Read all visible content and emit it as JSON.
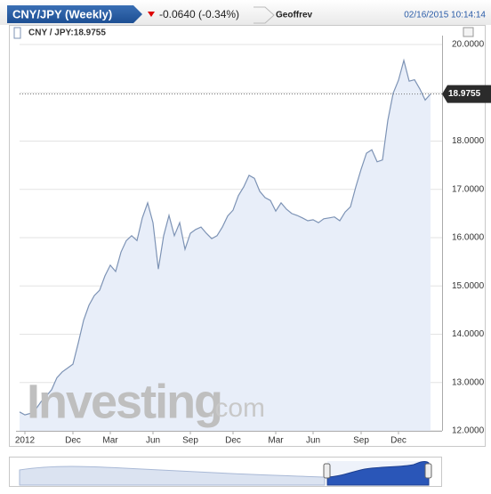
{
  "chart_data": {
    "type": "line",
    "title": "CNY/JPY (Weekly)",
    "change": "-0.0640 (-0.34%)",
    "user": "Geoffrev",
    "timestamp": "02/16/2015 10:14:14",
    "legend_label": "CNY / JPY:18.9755",
    "watermark": "Investing",
    "watermark_suffix": ".com",
    "color": "#7d93b5",
    "fill_color": "#e8eef9",
    "grid": true,
    "ylim": [
      12,
      20
    ],
    "yticks": [
      {
        "value": 12,
        "label": "12.0000"
      },
      {
        "value": 13,
        "label": "13.0000"
      },
      {
        "value": 14,
        "label": "14.0000"
      },
      {
        "value": 15,
        "label": "15.0000"
      },
      {
        "value": 16,
        "label": "16.0000"
      },
      {
        "value": 17,
        "label": "17.0000"
      },
      {
        "value": 18,
        "label": "18.0000"
      },
      {
        "value": 19,
        "label": "19.0000"
      },
      {
        "value": 20,
        "label": "20.0000"
      }
    ],
    "current_price": {
      "value": 18.9755,
      "label": "18.9755"
    },
    "categories": [
      null,
      "2012",
      null,
      null,
      null,
      null,
      null,
      null,
      null,
      null,
      "Dec",
      null,
      null,
      null,
      null,
      null,
      null,
      "Mar",
      null,
      null,
      null,
      null,
      null,
      null,
      null,
      "Jun",
      null,
      null,
      null,
      null,
      null,
      null,
      "Sep",
      null,
      null,
      null,
      null,
      null,
      null,
      null,
      "Dec",
      null,
      null,
      null,
      null,
      null,
      null,
      null,
      "Mar",
      null,
      null,
      null,
      null,
      null,
      null,
      "Jun",
      null,
      null,
      null,
      null,
      null,
      null,
      null,
      null,
      "Sep",
      null,
      null,
      null,
      null,
      null,
      null,
      "Dec",
      null,
      null,
      null,
      null,
      null,
      null
    ],
    "values": [
      12.39,
      12.33,
      12.36,
      12.44,
      12.6,
      12.72,
      12.85,
      13.1,
      13.22,
      13.3,
      13.38,
      13.82,
      14.29,
      14.6,
      14.8,
      14.91,
      15.21,
      15.43,
      15.3,
      15.7,
      15.94,
      16.04,
      15.94,
      16.41,
      16.72,
      16.31,
      15.35,
      16.04,
      16.46,
      16.04,
      16.31,
      15.76,
      16.09,
      16.17,
      16.22,
      16.09,
      15.98,
      16.04,
      16.22,
      16.45,
      16.57,
      16.87,
      17.05,
      17.29,
      17.23,
      16.96,
      16.83,
      16.77,
      16.55,
      16.72,
      16.59,
      16.5,
      16.46,
      16.41,
      16.35,
      16.37,
      16.31,
      16.39,
      16.41,
      16.43,
      16.35,
      16.53,
      16.64,
      17.05,
      17.42,
      17.75,
      17.82,
      17.57,
      17.61,
      18.43,
      18.99,
      19.26,
      19.67,
      19.24,
      19.27,
      19.08,
      18.85,
      18.9755
    ]
  }
}
